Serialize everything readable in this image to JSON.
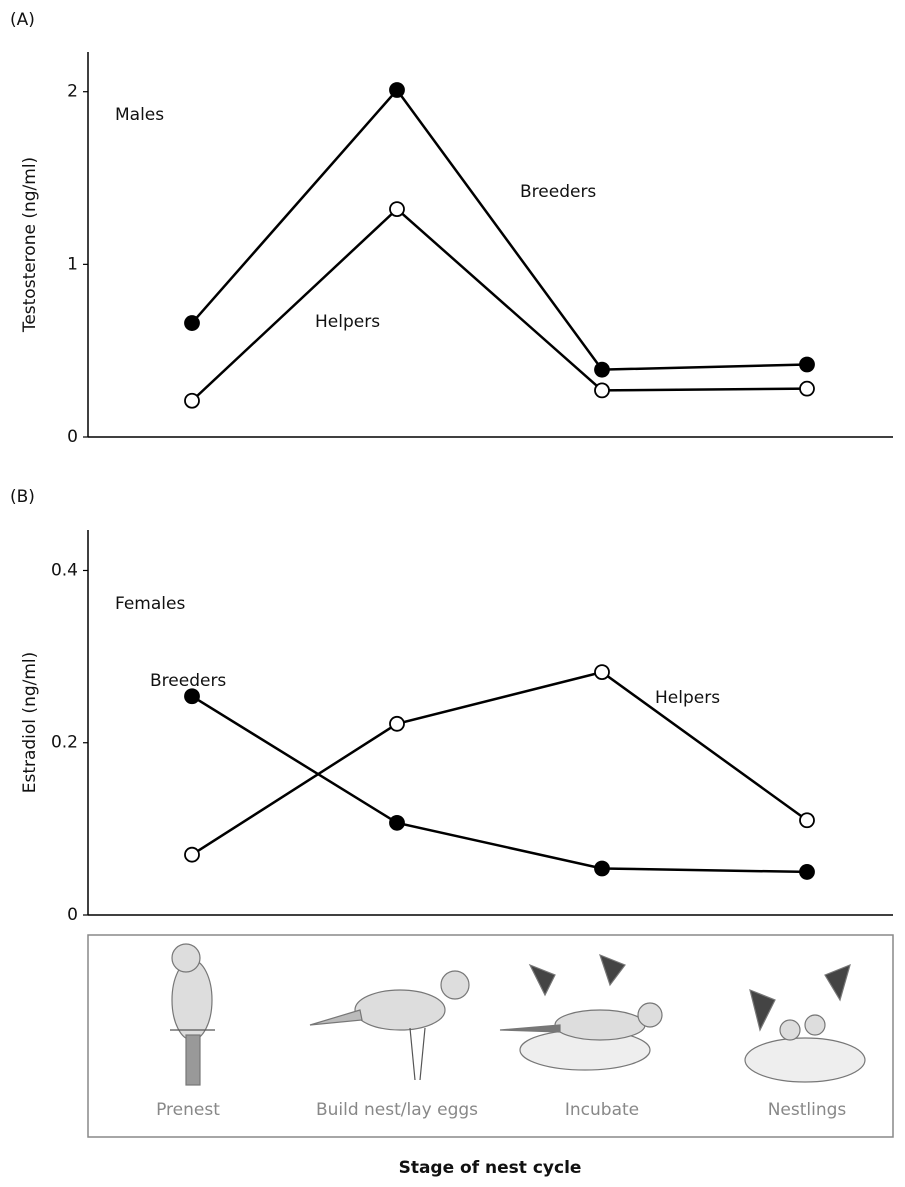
{
  "chart_data": [
    {
      "type": "line",
      "panel": "(A)",
      "group_label": "Males",
      "y_label": "Testosterone (ng/ml)",
      "ylim": [
        0,
        2.23
      ],
      "yticks": [
        0,
        1,
        2
      ],
      "series": [
        {
          "name": "Breeders",
          "color": "#000000",
          "marker_fill": "#000000",
          "values": [
            0.66,
            2.01,
            0.39,
            0.42
          ]
        },
        {
          "name": "Helpers",
          "color": "#000000",
          "marker_fill": "#ffffff",
          "values": [
            0.21,
            1.32,
            0.27,
            0.28
          ]
        }
      ]
    },
    {
      "type": "line",
      "panel": "(B)",
      "group_label": "Females",
      "y_label": "Estradiol (ng/ml)",
      "ylim": [
        0,
        0.447
      ],
      "yticks": [
        0,
        0.2,
        0.4
      ],
      "categories": [
        "Prenest",
        "Build nest/lay eggs",
        "Incubate",
        "Nestlings"
      ],
      "x_label": "Stage of nest cycle",
      "series": [
        {
          "name": "Breeders",
          "color": "#000000",
          "marker_fill": "#000000",
          "values": [
            0.254,
            0.107,
            0.054,
            0.05
          ]
        },
        {
          "name": "Helpers",
          "color": "#000000",
          "marker_fill": "#ffffff",
          "values": [
            0.07,
            0.222,
            0.282,
            0.11
          ]
        }
      ]
    }
  ]
}
